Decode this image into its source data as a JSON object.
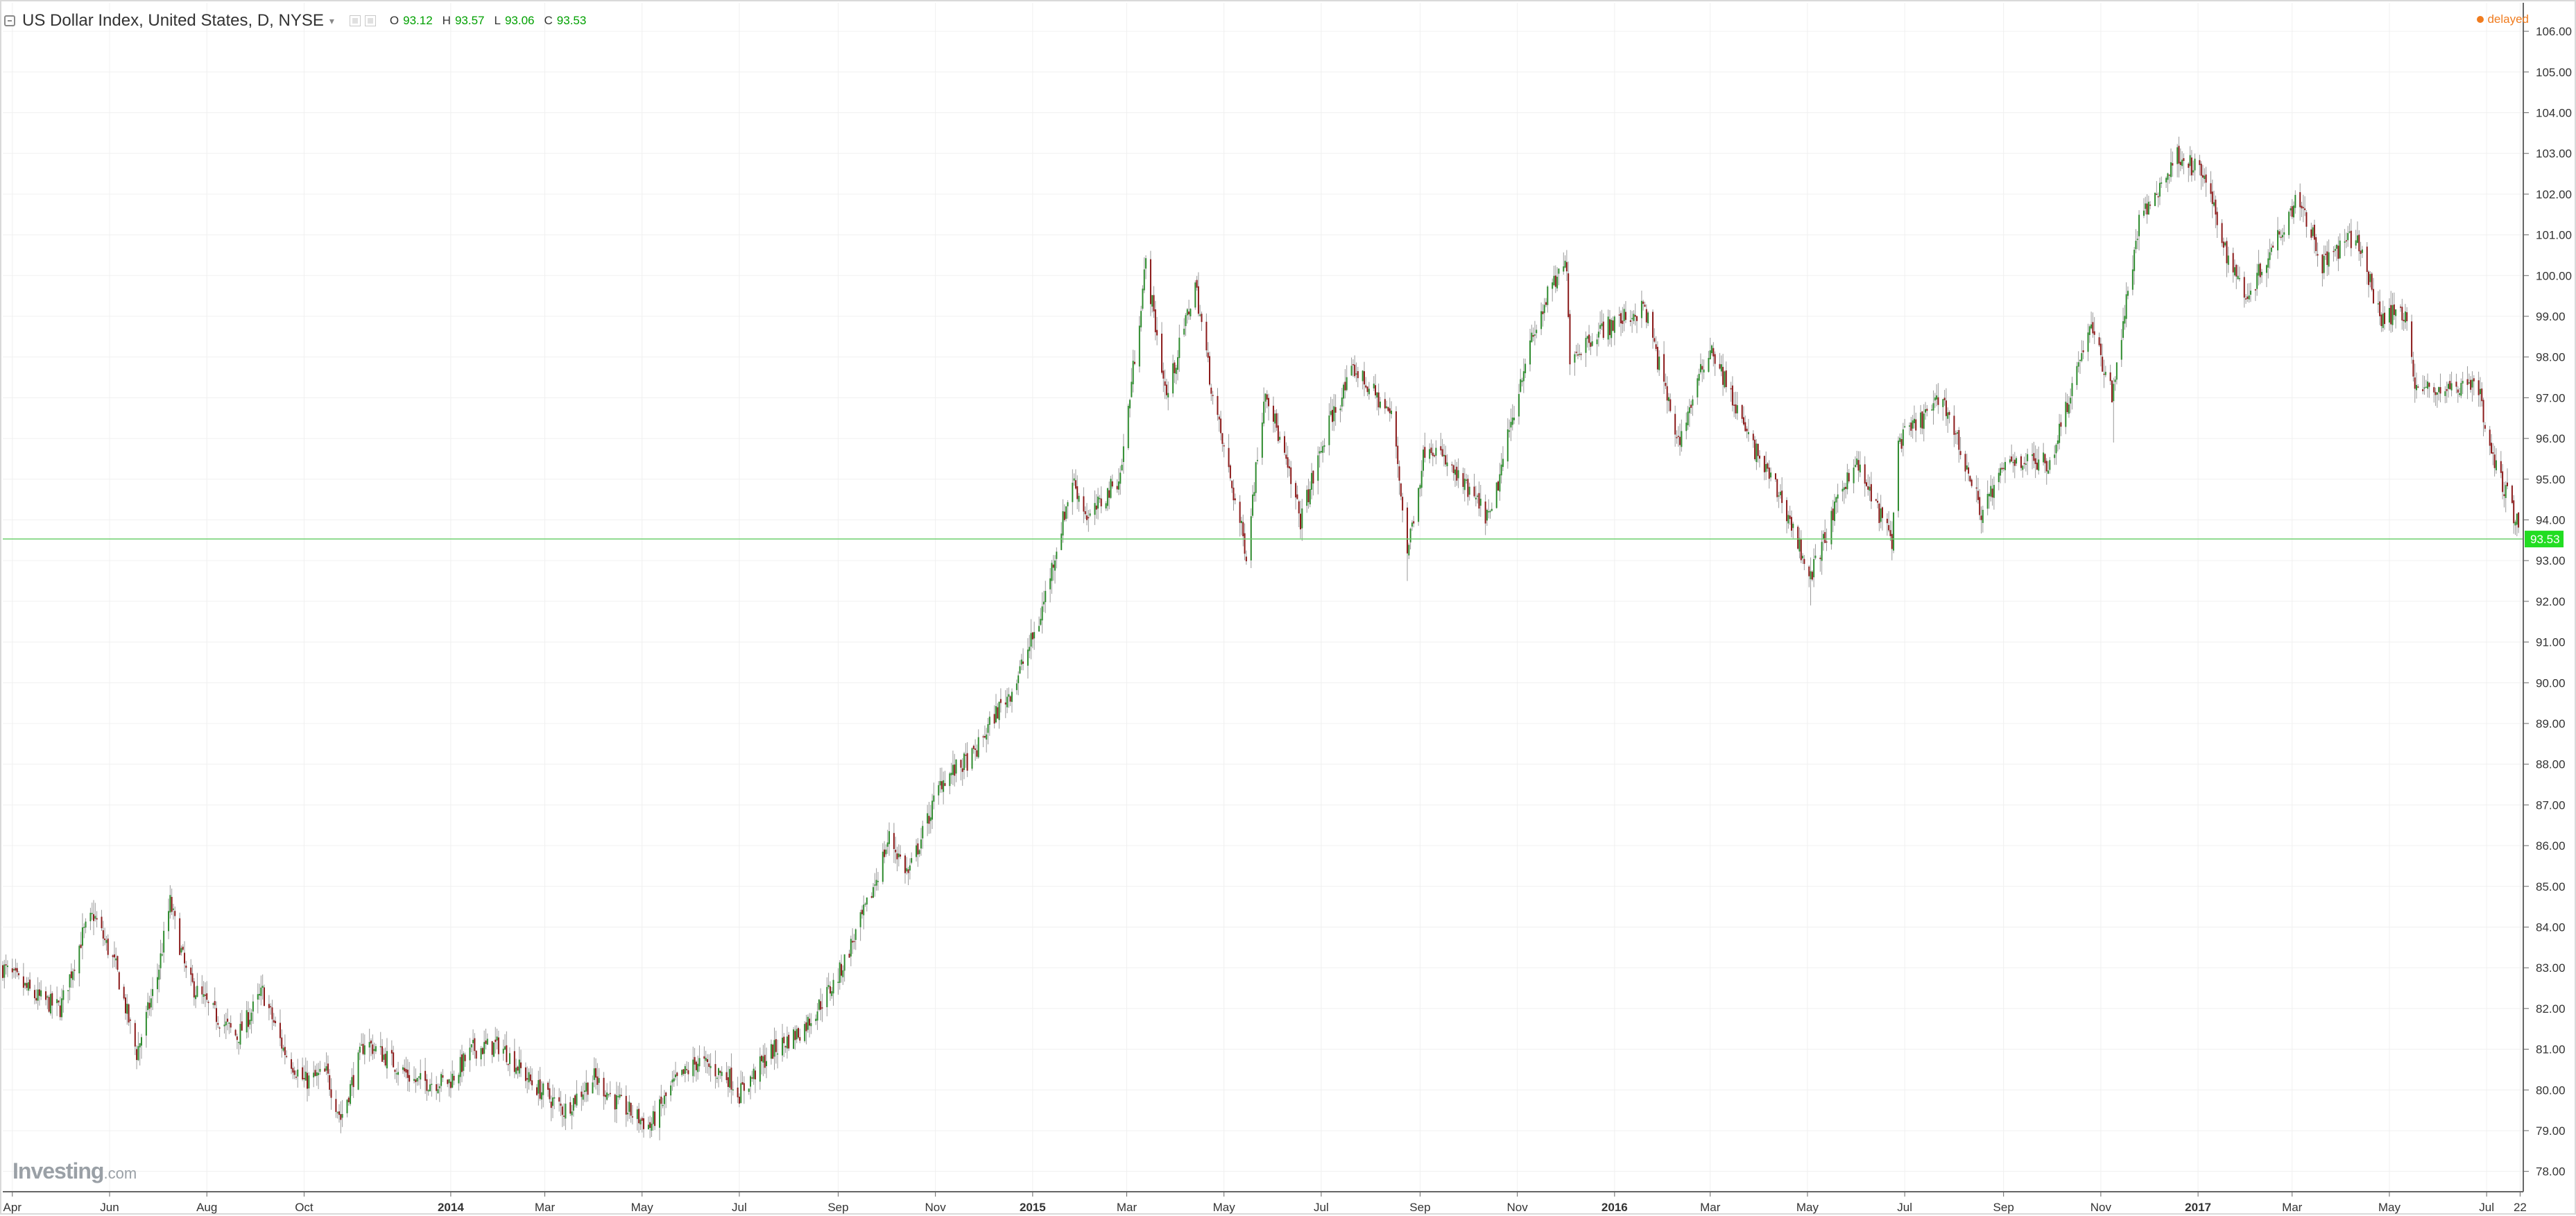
{
  "header": {
    "title": "US Dollar Index, United States, D, NYSE",
    "caret": "▾",
    "ohlc": [
      {
        "key": "O",
        "value": "93.12"
      },
      {
        "key": "H",
        "value": "93.57"
      },
      {
        "key": "L",
        "value": "93.06"
      },
      {
        "key": "C",
        "value": "93.53"
      }
    ],
    "delayed": "delayed"
  },
  "logo": {
    "brand": "Investing",
    "suffix": ".com"
  },
  "colors": {
    "up": "#2e8b2e",
    "down": "#8b1a1a",
    "wick": "#999999",
    "price_line": "#6fcf6f",
    "price_badge": "#22dd22",
    "grid": "#f0f0f0",
    "axis": "#666666"
  },
  "chart_data": {
    "type": "candlestick",
    "title": "US Dollar Index, United States, D, NYSE",
    "ylim": [
      77.5,
      106.7
    ],
    "y_ticks": [
      "78.00",
      "79.00",
      "80.00",
      "81.00",
      "82.00",
      "83.00",
      "84.00",
      "85.00",
      "86.00",
      "87.00",
      "88.00",
      "89.00",
      "90.00",
      "91.00",
      "92.00",
      "93.00",
      "94.00",
      "95.00",
      "96.00",
      "97.00",
      "98.00",
      "99.00",
      "100.00",
      "101.00",
      "102.00",
      "103.00",
      "104.00",
      "105.00",
      "106.00"
    ],
    "x_range": [
      "2013-03-26",
      "2017-07-24"
    ],
    "x_ticks": [
      {
        "label": "Apr",
        "date": "2013-04-01",
        "bold": false
      },
      {
        "label": "Jun",
        "date": "2013-06-01",
        "bold": false
      },
      {
        "label": "Aug",
        "date": "2013-08-01",
        "bold": false
      },
      {
        "label": "Oct",
        "date": "2013-10-01",
        "bold": false
      },
      {
        "label": "2014",
        "date": "2014-01-01",
        "bold": true
      },
      {
        "label": "Mar",
        "date": "2014-03-01",
        "bold": false
      },
      {
        "label": "May",
        "date": "2014-05-01",
        "bold": false
      },
      {
        "label": "Jul",
        "date": "2014-07-01",
        "bold": false
      },
      {
        "label": "Sep",
        "date": "2014-09-01",
        "bold": false
      },
      {
        "label": "Nov",
        "date": "2014-11-01",
        "bold": false
      },
      {
        "label": "2015",
        "date": "2015-01-01",
        "bold": true
      },
      {
        "label": "Mar",
        "date": "2015-03-01",
        "bold": false
      },
      {
        "label": "May",
        "date": "2015-05-01",
        "bold": false
      },
      {
        "label": "Jul",
        "date": "2015-07-01",
        "bold": false
      },
      {
        "label": "Sep",
        "date": "2015-09-01",
        "bold": false
      },
      {
        "label": "Nov",
        "date": "2015-11-01",
        "bold": false
      },
      {
        "label": "2016",
        "date": "2016-01-01",
        "bold": true
      },
      {
        "label": "Mar",
        "date": "2016-03-01",
        "bold": false
      },
      {
        "label": "May",
        "date": "2016-05-01",
        "bold": false
      },
      {
        "label": "Jul",
        "date": "2016-07-01",
        "bold": false
      },
      {
        "label": "Sep",
        "date": "2016-09-01",
        "bold": false
      },
      {
        "label": "Nov",
        "date": "2016-11-01",
        "bold": false
      },
      {
        "label": "2017",
        "date": "2017-01-01",
        "bold": true
      },
      {
        "label": "Mar",
        "date": "2017-03-01",
        "bold": false
      },
      {
        "label": "May",
        "date": "2017-05-01",
        "bold": false
      },
      {
        "label": "Jul",
        "date": "2017-07-01",
        "bold": false
      },
      {
        "label": "22",
        "date": "2017-07-22",
        "bold": false
      }
    ],
    "close_path": [
      [
        "2013-03-26",
        83.0
      ],
      [
        "2013-04-15",
        82.3
      ],
      [
        "2013-05-01",
        82.0
      ],
      [
        "2013-05-15",
        83.8
      ],
      [
        "2013-05-22",
        84.3
      ],
      [
        "2013-06-05",
        83.0
      ],
      [
        "2013-06-18",
        80.9
      ],
      [
        "2013-07-01",
        82.8
      ],
      [
        "2013-07-09",
        84.6
      ],
      [
        "2013-07-20",
        82.7
      ],
      [
        "2013-08-05",
        81.9
      ],
      [
        "2013-08-20",
        81.3
      ],
      [
        "2013-09-05",
        82.4
      ],
      [
        "2013-09-18",
        81.0
      ],
      [
        "2013-10-01",
        80.2
      ],
      [
        "2013-10-15",
        80.4
      ],
      [
        "2013-10-24",
        79.3
      ],
      [
        "2013-11-08",
        81.2
      ],
      [
        "2013-11-25",
        80.7
      ],
      [
        "2013-12-10",
        80.2
      ],
      [
        "2013-12-31",
        80.2
      ],
      [
        "2014-01-15",
        81.0
      ],
      [
        "2014-02-01",
        81.1
      ],
      [
        "2014-02-20",
        80.2
      ],
      [
        "2014-03-13",
        79.5
      ],
      [
        "2014-04-01",
        80.3
      ],
      [
        "2014-04-15",
        79.7
      ],
      [
        "2014-05-06",
        79.1
      ],
      [
        "2014-05-20",
        80.1
      ],
      [
        "2014-06-05",
        80.7
      ],
      [
        "2014-06-25",
        80.3
      ],
      [
        "2014-07-01",
        79.9
      ],
      [
        "2014-07-20",
        80.9
      ],
      [
        "2014-08-10",
        81.5
      ],
      [
        "2014-08-31",
        82.7
      ],
      [
        "2014-09-20",
        84.6
      ],
      [
        "2014-10-03",
        86.2
      ],
      [
        "2014-10-15",
        85.3
      ],
      [
        "2014-11-05",
        87.6
      ],
      [
        "2014-11-25",
        88.2
      ],
      [
        "2014-12-08",
        89.2
      ],
      [
        "2014-12-20",
        89.9
      ],
      [
        "2015-01-05",
        91.5
      ],
      [
        "2015-01-26",
        95.0
      ],
      [
        "2015-02-05",
        94.0
      ],
      [
        "2015-02-25",
        95.1
      ],
      [
        "2015-03-13",
        100.3
      ],
      [
        "2015-03-26",
        97.0
      ],
      [
        "2015-04-13",
        99.8
      ],
      [
        "2015-04-25",
        96.8
      ],
      [
        "2015-05-15",
        93.2
      ],
      [
        "2015-05-27",
        97.3
      ],
      [
        "2015-06-18",
        94.0
      ],
      [
        "2015-07-07",
        96.5
      ],
      [
        "2015-07-22",
        97.7
      ],
      [
        "2015-08-15",
        96.5
      ],
      [
        "2015-08-24",
        93.2
      ],
      [
        "2015-09-05",
        96.0
      ],
      [
        "2015-10-15",
        94.0
      ],
      [
        "2015-11-05",
        97.8
      ],
      [
        "2015-11-20",
        99.5
      ],
      [
        "2015-12-02",
        100.3
      ],
      [
        "2015-12-04",
        98.0
      ],
      [
        "2015-12-20",
        98.6
      ],
      [
        "2016-01-20",
        99.2
      ],
      [
        "2016-02-10",
        95.9
      ],
      [
        "2016-03-01",
        98.3
      ],
      [
        "2016-03-25",
        96.0
      ],
      [
        "2016-04-15",
        94.5
      ],
      [
        "2016-05-03",
        92.6
      ],
      [
        "2016-05-30",
        95.5
      ],
      [
        "2016-06-23",
        93.5
      ],
      [
        "2016-06-27",
        95.9
      ],
      [
        "2016-07-25",
        97.0
      ],
      [
        "2016-08-18",
        94.2
      ],
      [
        "2016-09-05",
        95.5
      ],
      [
        "2016-09-30",
        95.4
      ],
      [
        "2016-10-25",
        98.8
      ],
      [
        "2016-11-08",
        97.1
      ],
      [
        "2016-11-25",
        101.3
      ],
      [
        "2016-12-20",
        103.0
      ],
      [
        "2017-01-05",
        102.4
      ],
      [
        "2017-01-20",
        100.4
      ],
      [
        "2017-02-01",
        99.5
      ],
      [
        "2017-02-20",
        101.0
      ],
      [
        "2017-03-05",
        102.0
      ],
      [
        "2017-03-20",
        100.3
      ],
      [
        "2017-04-10",
        101.0
      ],
      [
        "2017-04-25",
        99.0
      ],
      [
        "2017-05-12",
        99.1
      ],
      [
        "2017-05-17",
        97.2
      ],
      [
        "2017-06-10",
        97.2
      ],
      [
        "2017-06-25",
        97.5
      ],
      [
        "2017-07-01",
        96.0
      ],
      [
        "2017-07-05",
        95.5
      ],
      [
        "2017-07-14",
        94.6
      ],
      [
        "2017-07-24",
        93.5
      ]
    ],
    "spikes": [
      {
        "date": "2015-08-24",
        "low": 92.5
      },
      {
        "date": "2016-05-03",
        "low": 91.9
      },
      {
        "date": "2016-11-09",
        "low": 95.9
      },
      {
        "date": "2013-06-20",
        "low": 80.6
      },
      {
        "date": "2014-05-08",
        "low": 79.0
      }
    ],
    "last_price": 93.53,
    "last_price_label": "93.53"
  }
}
